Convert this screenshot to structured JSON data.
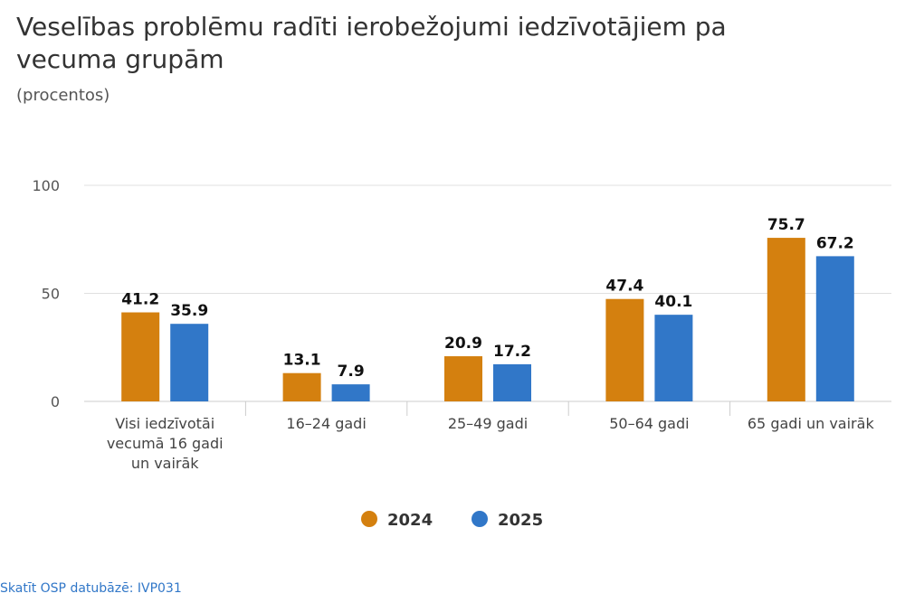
{
  "title": "Veselības problēmu radīti ierobežojumi iedzīvotājiem pa vecuma grupām",
  "subtitle": "(procentos)",
  "source_link": "Skatīt OSP datubāzē: IVP031",
  "colors": {
    "s2024": "#d4800f",
    "s2025": "#3177c8",
    "grid": "#e0e0e0",
    "axis": "#cccccc"
  },
  "chart_data": {
    "type": "bar",
    "title": "Veselības problēmu radīti ierobežojumi iedzīvotājiem pa vecuma grupām",
    "subtitle": "(procentos)",
    "categories": [
      [
        "Visi iedzīvotāi",
        "vecumā 16 gadi",
        "un vairāk"
      ],
      [
        "16–24 gadi"
      ],
      [
        "25–49 gadi"
      ],
      [
        "50–64 gadi"
      ],
      [
        "65 gadi un vairāk"
      ]
    ],
    "series": [
      {
        "name": "2024",
        "values": [
          41.2,
          13.1,
          20.9,
          47.4,
          75.7
        ],
        "labels": [
          "41.2",
          "13.1",
          "20.9",
          "47.4",
          "75.7"
        ]
      },
      {
        "name": "2025",
        "values": [
          35.9,
          7.9,
          17.2,
          40.1,
          67.2
        ],
        "labels": [
          "35.9",
          "7.9",
          "17.2",
          "40.1",
          "67.2"
        ]
      }
    ],
    "yticks": [
      0,
      50,
      100
    ],
    "ylim": [
      0,
      100
    ],
    "xlabel": "",
    "ylabel": "",
    "grid": true,
    "legend_position": "bottom-center"
  }
}
